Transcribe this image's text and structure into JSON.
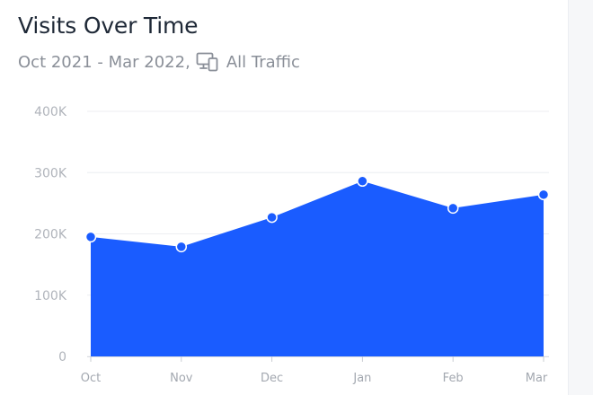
{
  "header": {
    "title": "Visits Over Time",
    "date_range": "Oct 2021 - Mar 2022,",
    "traffic_filter": "All Traffic",
    "traffic_icon": "devices-icon"
  },
  "colors": {
    "area_fill": "#1a5cff",
    "point_fill": "#1a5cff",
    "point_stroke": "#ffffff",
    "grid": "#eceef1",
    "title_text": "#1f2937",
    "muted_text": "#8a8f98"
  },
  "chart_data": {
    "type": "area",
    "title": "Visits Over Time",
    "xlabel": "",
    "ylabel": "",
    "categories": [
      "Oct",
      "Nov",
      "Dec",
      "Jan",
      "Feb",
      "Mar"
    ],
    "series": [
      {
        "values": [
          195000,
          179000,
          227000,
          286000,
          242000,
          264000
        ]
      }
    ],
    "ylim": [
      0,
      400000
    ],
    "yticks": [
      0,
      100000,
      200000,
      300000,
      400000
    ],
    "ytick_labels": [
      "0",
      "100K",
      "200K",
      "300K",
      "400K"
    ],
    "grid": true,
    "legend": "none"
  }
}
